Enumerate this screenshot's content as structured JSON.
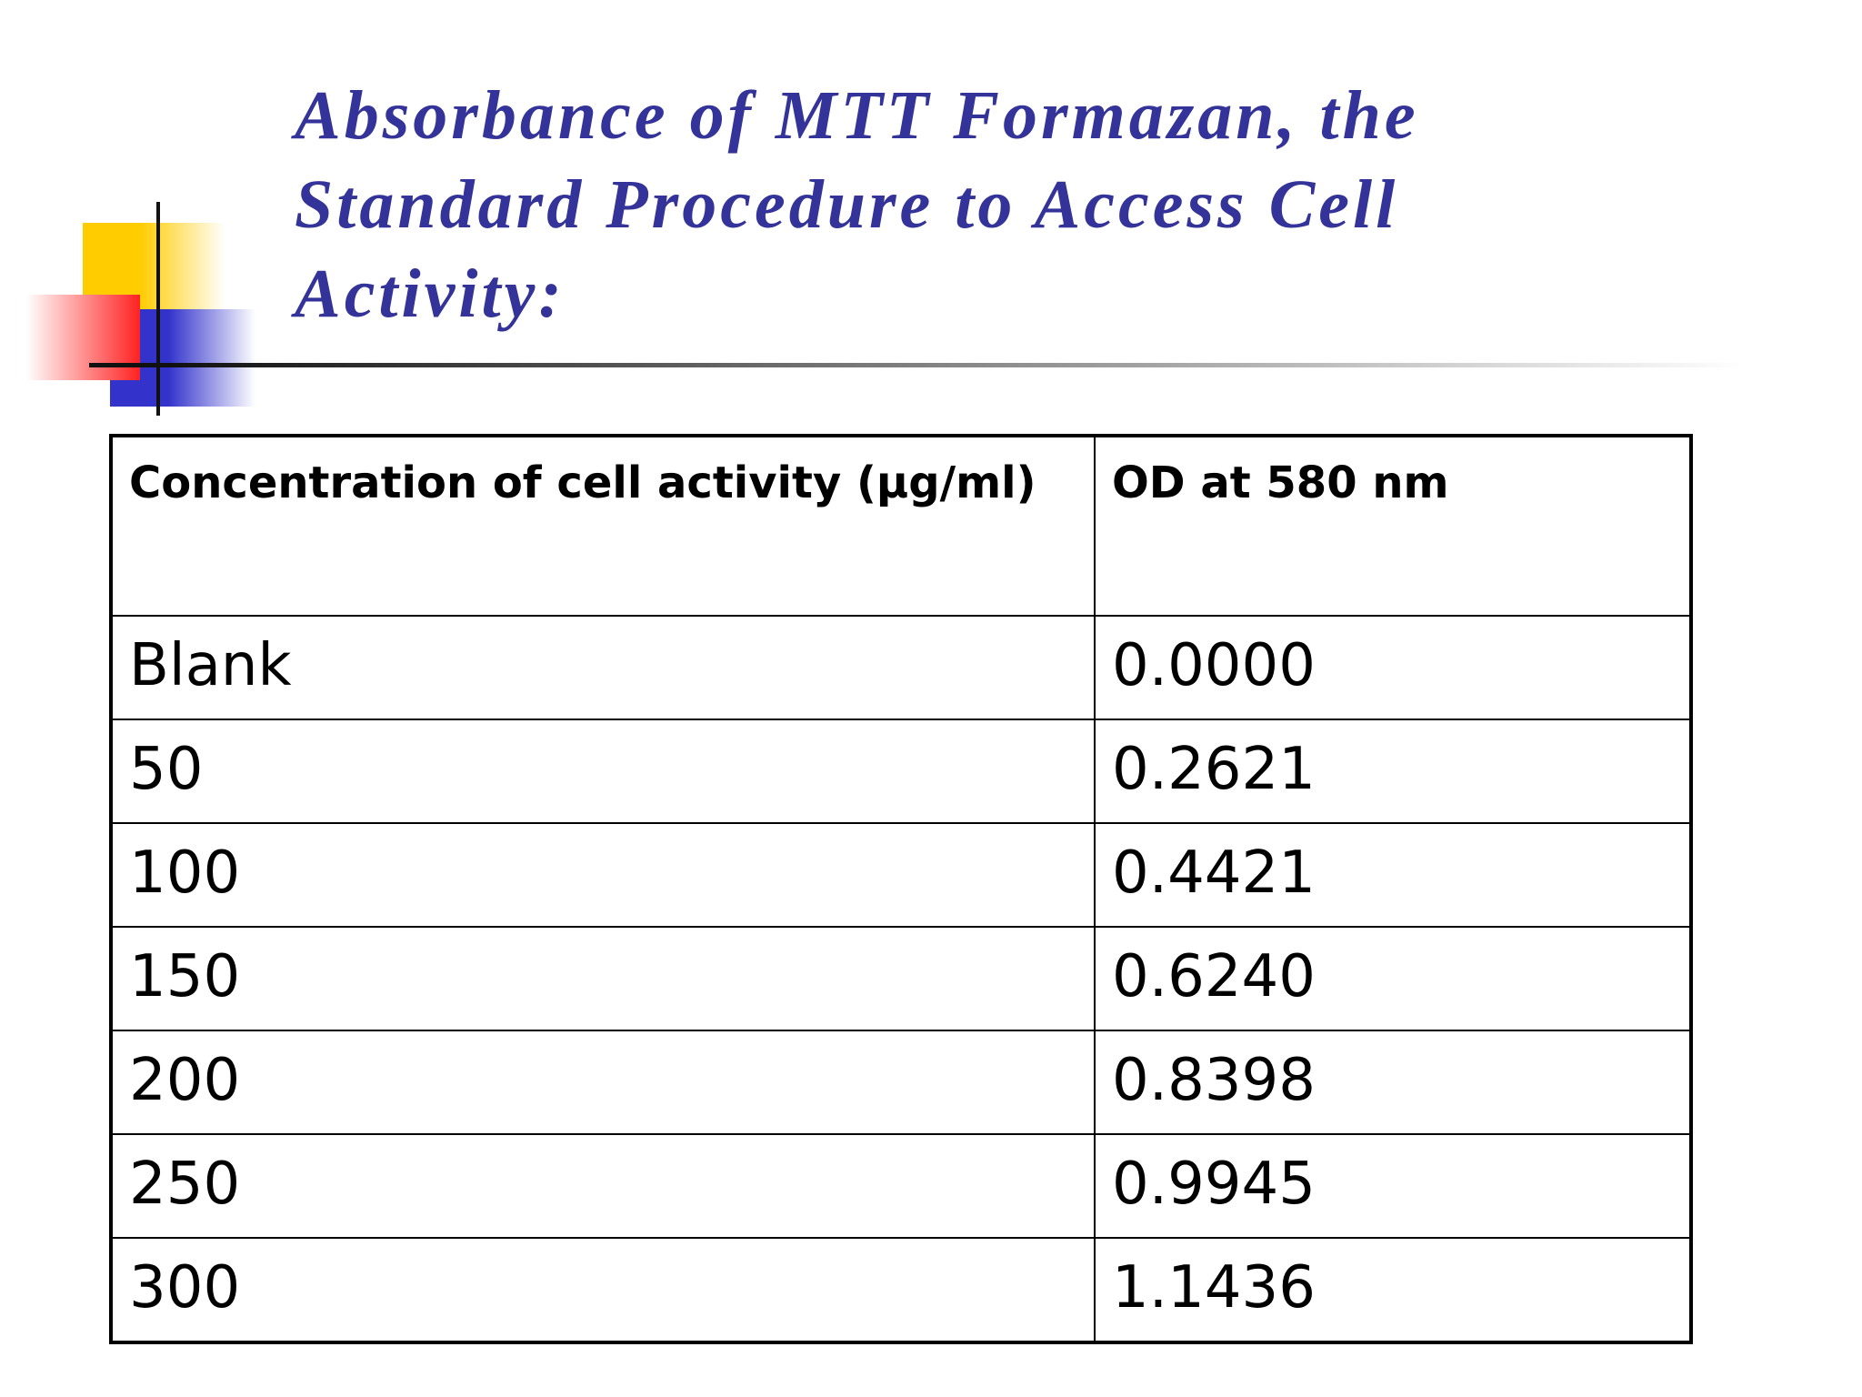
{
  "title": "Absorbance of MTT Formazan, the Standard Procedure to Access Cell Activity:",
  "table": {
    "header": [
      "Concentration of cell activity (µg/ml)",
      "OD at 580 nm"
    ],
    "rows": [
      [
        "Blank",
        "0.0000"
      ],
      [
        "50",
        "0.2621"
      ],
      [
        "100",
        "0.4421"
      ],
      [
        "150",
        "0.6240"
      ],
      [
        "200",
        "0.8398"
      ],
      [
        "250",
        "0.9945"
      ],
      [
        "300",
        "1.1436"
      ]
    ]
  }
}
